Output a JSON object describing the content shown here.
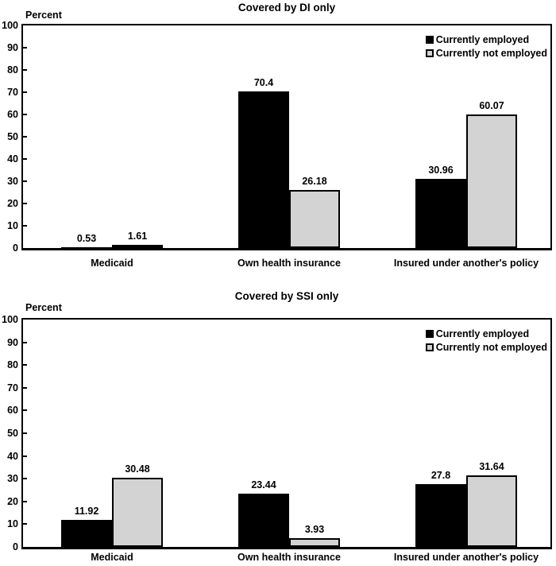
{
  "figure": {
    "background": "#ffffff",
    "text_color": "#000000"
  },
  "chart_data": [
    {
      "type": "bar",
      "title": "Covered by DI only",
      "ylabel": "Percent",
      "xlabel": "",
      "ylim": [
        0,
        100
      ],
      "ytick_step": 10,
      "grid": false,
      "legend_position": "top-right",
      "categories": [
        "Medicaid",
        "Own health insurance",
        "Insured under another's policy"
      ],
      "series": [
        {
          "name": "Currently employed",
          "color": "#000000",
          "values": [
            0.53,
            70.4,
            30.96
          ],
          "labels": [
            "0.53",
            "70.4",
            "30.96"
          ]
        },
        {
          "name": "Currently not employed",
          "color": "#d3d3d3",
          "values": [
            1.61,
            26.18,
            60.07
          ],
          "labels": [
            "1.61",
            "26.18",
            "60.07"
          ]
        }
      ]
    },
    {
      "type": "bar",
      "title": "Covered by SSI only",
      "ylabel": "Percent",
      "xlabel": "",
      "ylim": [
        0,
        100
      ],
      "ytick_step": 10,
      "grid": false,
      "legend_position": "top-right",
      "categories": [
        "Medicaid",
        "Own health insurance",
        "Insured under another's policy"
      ],
      "series": [
        {
          "name": "Currently employed",
          "color": "#000000",
          "values": [
            11.92,
            23.44,
            27.8
          ],
          "labels": [
            "11.92",
            "23.44",
            "27.8"
          ]
        },
        {
          "name": "Currently not employed",
          "color": "#d3d3d3",
          "values": [
            30.48,
            3.93,
            31.64
          ],
          "labels": [
            "30.48",
            "3.93",
            "31.64"
          ]
        }
      ]
    }
  ]
}
